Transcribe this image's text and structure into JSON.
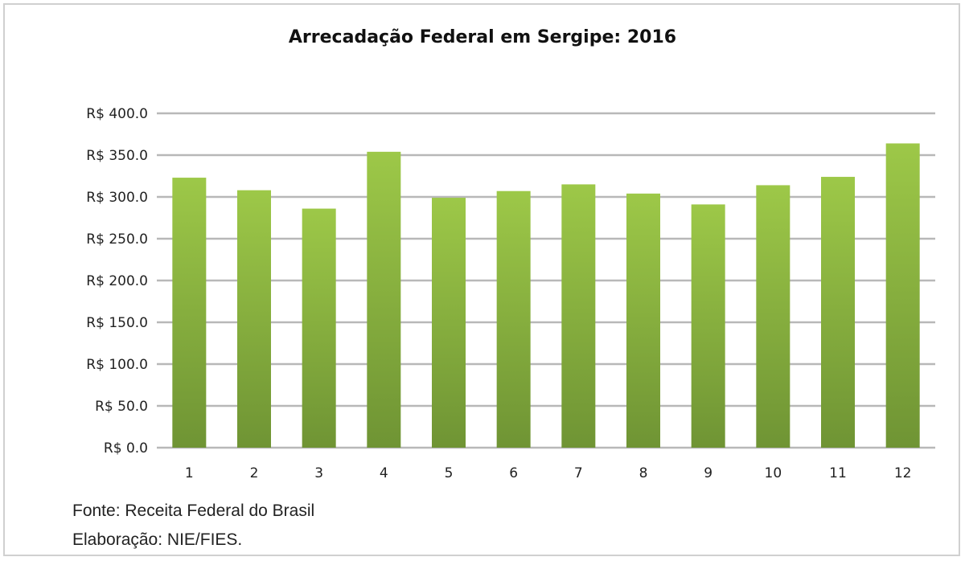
{
  "chart_data": {
    "type": "bar",
    "title": "Arrecadação Federal em Sergipe: 2016",
    "categories": [
      "1",
      "2",
      "3",
      "4",
      "5",
      "6",
      "7",
      "8",
      "9",
      "10",
      "11",
      "12"
    ],
    "values": [
      323,
      308,
      286,
      354,
      299,
      307,
      315,
      304,
      291,
      314,
      324,
      364
    ],
    "ylim": [
      0,
      400
    ],
    "yticks": [
      0,
      50,
      100,
      150,
      200,
      250,
      300,
      350,
      400
    ],
    "ytick_labels": [
      "R$ 0.0",
      "R$ 50.0",
      "R$ 100.0",
      "R$ 150.0",
      "R$ 200.0",
      "R$ 250.0",
      "R$ 300.0",
      "R$ 350.0",
      "R$ 400.0"
    ],
    "grid": true,
    "bar_color_top": "#9dc848",
    "bar_color_bottom": "#6f9434",
    "grid_color": "#b8b8b8"
  },
  "footer": {
    "source": "Fonte: Receita Federal do Brasil",
    "credit": "Elaboração: NIE/FIES."
  }
}
